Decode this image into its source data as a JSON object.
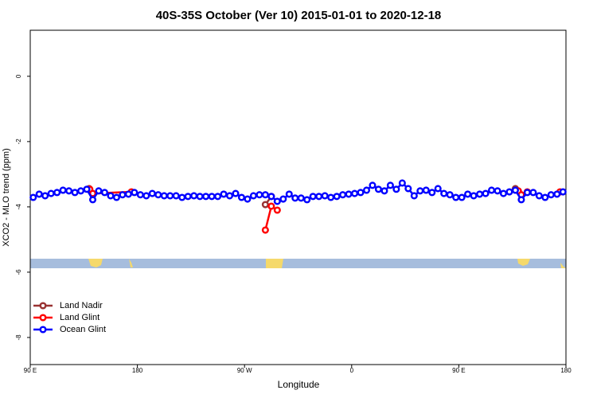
{
  "chart_data": {
    "type": "line",
    "title": "40S-35S October (Ver 10)   2015-01-01 to 2020-12-18",
    "xlabel": "Longitude",
    "ylabel": "XCO2 - MLO trend (ppm)",
    "xlim": [
      90,
      540
    ],
    "ylim": [
      -8.83,
      1.41
    ],
    "xticks": [
      {
        "value": 90,
        "label": "90 E"
      },
      {
        "value": 180,
        "label": "180"
      },
      {
        "value": 270,
        "label": "90 W"
      },
      {
        "value": 360,
        "label": "0"
      },
      {
        "value": 450,
        "label": "90 E"
      },
      {
        "value": 540,
        "label": "180"
      }
    ],
    "yticks": [
      0,
      -2,
      -4,
      -6,
      -8
    ],
    "legend": "bottomleft",
    "series": [
      {
        "name": "Land Nadir",
        "color": "#993333",
        "x": [
          139.5,
          null,
          287.5,
          292.5,
          null,
          497.5
        ],
        "values": [
          -3.44,
          null,
          -3.93,
          -3.68,
          null,
          -3.44
        ]
      },
      {
        "name": "Land Glint",
        "color": "#ff0000",
        "x": [
          140,
          142.5,
          175,
          null,
          287.5,
          292.5,
          297.5,
          null,
          500,
          502.5,
          507.5,
          null,
          535
        ],
        "values": [
          -3.46,
          -3.59,
          -3.54,
          null,
          -4.71,
          -3.98,
          -4.1,
          null,
          -3.51,
          -3.63,
          -3.54,
          null,
          -3.54
        ]
      },
      {
        "name": "Ocean Glint",
        "color": "#0000ff",
        "x": [
          92.5,
          97.5,
          102.5,
          107.5,
          112.5,
          117.5,
          122.5,
          127.5,
          132.5,
          137.5,
          142.5,
          147.5,
          152.5,
          157.5,
          162.5,
          167.5,
          172.5,
          177.5,
          182.5,
          187.5,
          192.5,
          197.5,
          202.5,
          207.5,
          212.5,
          217.5,
          222.5,
          227.5,
          232.5,
          237.5,
          242.5,
          247.5,
          252.5,
          257.5,
          262.5,
          267.5,
          272.5,
          277.5,
          282.5,
          287.5,
          292.5,
          297.5,
          302.5,
          307.5,
          312.5,
          317.5,
          322.5,
          327.5,
          332.5,
          337.5,
          342.5,
          347.5,
          352.5,
          357.5,
          362.5,
          367.5,
          372.5,
          377.5,
          382.5,
          387.5,
          392.5,
          397.5,
          402.5,
          407.5,
          412.5,
          417.5,
          422.5,
          427.5,
          432.5,
          437.5,
          442.5,
          447.5,
          452.5,
          457.5,
          462.5,
          467.5,
          472.5,
          477.5,
          482.5,
          487.5,
          492.5,
          497.5,
          502.5,
          507.5,
          512.5,
          517.5,
          522.5,
          527.5,
          532.5,
          537.5
        ],
        "values": [
          -3.71,
          -3.61,
          -3.66,
          -3.59,
          -3.56,
          -3.49,
          -3.51,
          -3.56,
          -3.51,
          -3.46,
          -3.78,
          -3.51,
          -3.56,
          -3.66,
          -3.71,
          -3.63,
          -3.61,
          -3.56,
          -3.63,
          -3.66,
          -3.59,
          -3.63,
          -3.66,
          -3.66,
          -3.66,
          -3.71,
          -3.68,
          -3.66,
          -3.68,
          -3.68,
          -3.68,
          -3.68,
          -3.61,
          -3.66,
          -3.59,
          -3.71,
          -3.76,
          -3.66,
          -3.63,
          -3.63,
          -3.68,
          -3.83,
          -3.76,
          -3.61,
          -3.73,
          -3.73,
          -3.78,
          -3.68,
          -3.68,
          -3.66,
          -3.71,
          -3.68,
          -3.63,
          -3.61,
          -3.59,
          -3.56,
          -3.49,
          -3.34,
          -3.46,
          -3.51,
          -3.34,
          -3.46,
          -3.27,
          -3.44,
          -3.66,
          -3.51,
          -3.49,
          -3.56,
          -3.44,
          -3.59,
          -3.63,
          -3.71,
          -3.71,
          -3.61,
          -3.66,
          -3.61,
          -3.59,
          -3.49,
          -3.51,
          -3.59,
          -3.54,
          -3.49,
          -3.78,
          -3.56,
          -3.56,
          -3.66,
          -3.71,
          -3.63,
          -3.61,
          -3.54
        ]
      }
    ]
  }
}
